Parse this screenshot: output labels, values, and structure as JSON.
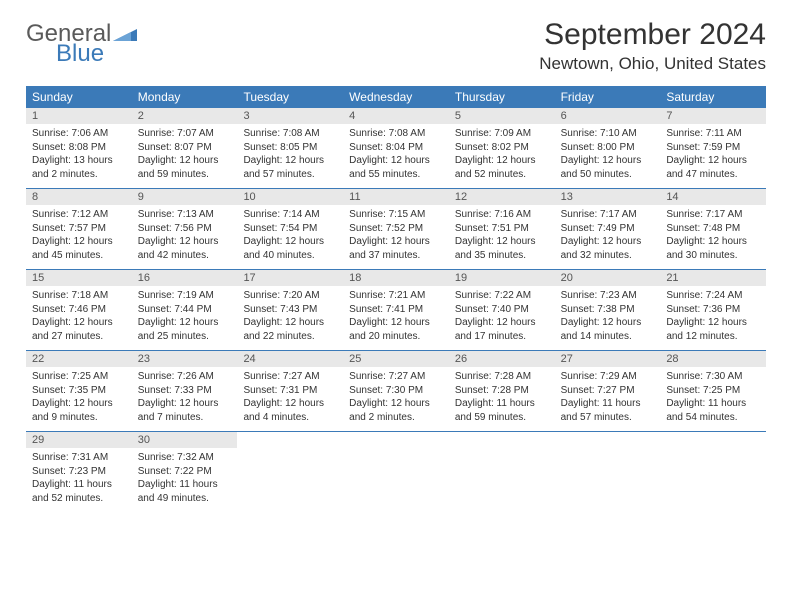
{
  "brand": {
    "top": "General",
    "bottom": "Blue"
  },
  "title": "September 2024",
  "location": "Newtown, Ohio, United States",
  "colors": {
    "header_bg": "#3b7ab8",
    "header_text": "#ffffff",
    "daynum_bg": "#e8e8e8",
    "text": "#333333",
    "logo_gray": "#5a5a5a",
    "logo_blue": "#3b7ab8"
  },
  "weekdays": [
    "Sunday",
    "Monday",
    "Tuesday",
    "Wednesday",
    "Thursday",
    "Friday",
    "Saturday"
  ],
  "weeks": [
    [
      {
        "num": "1",
        "sunrise": "Sunrise: 7:06 AM",
        "sunset": "Sunset: 8:08 PM",
        "daylight": "Daylight: 13 hours and 2 minutes."
      },
      {
        "num": "2",
        "sunrise": "Sunrise: 7:07 AM",
        "sunset": "Sunset: 8:07 PM",
        "daylight": "Daylight: 12 hours and 59 minutes."
      },
      {
        "num": "3",
        "sunrise": "Sunrise: 7:08 AM",
        "sunset": "Sunset: 8:05 PM",
        "daylight": "Daylight: 12 hours and 57 minutes."
      },
      {
        "num": "4",
        "sunrise": "Sunrise: 7:08 AM",
        "sunset": "Sunset: 8:04 PM",
        "daylight": "Daylight: 12 hours and 55 minutes."
      },
      {
        "num": "5",
        "sunrise": "Sunrise: 7:09 AM",
        "sunset": "Sunset: 8:02 PM",
        "daylight": "Daylight: 12 hours and 52 minutes."
      },
      {
        "num": "6",
        "sunrise": "Sunrise: 7:10 AM",
        "sunset": "Sunset: 8:00 PM",
        "daylight": "Daylight: 12 hours and 50 minutes."
      },
      {
        "num": "7",
        "sunrise": "Sunrise: 7:11 AM",
        "sunset": "Sunset: 7:59 PM",
        "daylight": "Daylight: 12 hours and 47 minutes."
      }
    ],
    [
      {
        "num": "8",
        "sunrise": "Sunrise: 7:12 AM",
        "sunset": "Sunset: 7:57 PM",
        "daylight": "Daylight: 12 hours and 45 minutes."
      },
      {
        "num": "9",
        "sunrise": "Sunrise: 7:13 AM",
        "sunset": "Sunset: 7:56 PM",
        "daylight": "Daylight: 12 hours and 42 minutes."
      },
      {
        "num": "10",
        "sunrise": "Sunrise: 7:14 AM",
        "sunset": "Sunset: 7:54 PM",
        "daylight": "Daylight: 12 hours and 40 minutes."
      },
      {
        "num": "11",
        "sunrise": "Sunrise: 7:15 AM",
        "sunset": "Sunset: 7:52 PM",
        "daylight": "Daylight: 12 hours and 37 minutes."
      },
      {
        "num": "12",
        "sunrise": "Sunrise: 7:16 AM",
        "sunset": "Sunset: 7:51 PM",
        "daylight": "Daylight: 12 hours and 35 minutes."
      },
      {
        "num": "13",
        "sunrise": "Sunrise: 7:17 AM",
        "sunset": "Sunset: 7:49 PM",
        "daylight": "Daylight: 12 hours and 32 minutes."
      },
      {
        "num": "14",
        "sunrise": "Sunrise: 7:17 AM",
        "sunset": "Sunset: 7:48 PM",
        "daylight": "Daylight: 12 hours and 30 minutes."
      }
    ],
    [
      {
        "num": "15",
        "sunrise": "Sunrise: 7:18 AM",
        "sunset": "Sunset: 7:46 PM",
        "daylight": "Daylight: 12 hours and 27 minutes."
      },
      {
        "num": "16",
        "sunrise": "Sunrise: 7:19 AM",
        "sunset": "Sunset: 7:44 PM",
        "daylight": "Daylight: 12 hours and 25 minutes."
      },
      {
        "num": "17",
        "sunrise": "Sunrise: 7:20 AM",
        "sunset": "Sunset: 7:43 PM",
        "daylight": "Daylight: 12 hours and 22 minutes."
      },
      {
        "num": "18",
        "sunrise": "Sunrise: 7:21 AM",
        "sunset": "Sunset: 7:41 PM",
        "daylight": "Daylight: 12 hours and 20 minutes."
      },
      {
        "num": "19",
        "sunrise": "Sunrise: 7:22 AM",
        "sunset": "Sunset: 7:40 PM",
        "daylight": "Daylight: 12 hours and 17 minutes."
      },
      {
        "num": "20",
        "sunrise": "Sunrise: 7:23 AM",
        "sunset": "Sunset: 7:38 PM",
        "daylight": "Daylight: 12 hours and 14 minutes."
      },
      {
        "num": "21",
        "sunrise": "Sunrise: 7:24 AM",
        "sunset": "Sunset: 7:36 PM",
        "daylight": "Daylight: 12 hours and 12 minutes."
      }
    ],
    [
      {
        "num": "22",
        "sunrise": "Sunrise: 7:25 AM",
        "sunset": "Sunset: 7:35 PM",
        "daylight": "Daylight: 12 hours and 9 minutes."
      },
      {
        "num": "23",
        "sunrise": "Sunrise: 7:26 AM",
        "sunset": "Sunset: 7:33 PM",
        "daylight": "Daylight: 12 hours and 7 minutes."
      },
      {
        "num": "24",
        "sunrise": "Sunrise: 7:27 AM",
        "sunset": "Sunset: 7:31 PM",
        "daylight": "Daylight: 12 hours and 4 minutes."
      },
      {
        "num": "25",
        "sunrise": "Sunrise: 7:27 AM",
        "sunset": "Sunset: 7:30 PM",
        "daylight": "Daylight: 12 hours and 2 minutes."
      },
      {
        "num": "26",
        "sunrise": "Sunrise: 7:28 AM",
        "sunset": "Sunset: 7:28 PM",
        "daylight": "Daylight: 11 hours and 59 minutes."
      },
      {
        "num": "27",
        "sunrise": "Sunrise: 7:29 AM",
        "sunset": "Sunset: 7:27 PM",
        "daylight": "Daylight: 11 hours and 57 minutes."
      },
      {
        "num": "28",
        "sunrise": "Sunrise: 7:30 AM",
        "sunset": "Sunset: 7:25 PM",
        "daylight": "Daylight: 11 hours and 54 minutes."
      }
    ],
    [
      {
        "num": "29",
        "sunrise": "Sunrise: 7:31 AM",
        "sunset": "Sunset: 7:23 PM",
        "daylight": "Daylight: 11 hours and 52 minutes."
      },
      {
        "num": "30",
        "sunrise": "Sunrise: 7:32 AM",
        "sunset": "Sunset: 7:22 PM",
        "daylight": "Daylight: 11 hours and 49 minutes."
      },
      null,
      null,
      null,
      null,
      null
    ]
  ]
}
